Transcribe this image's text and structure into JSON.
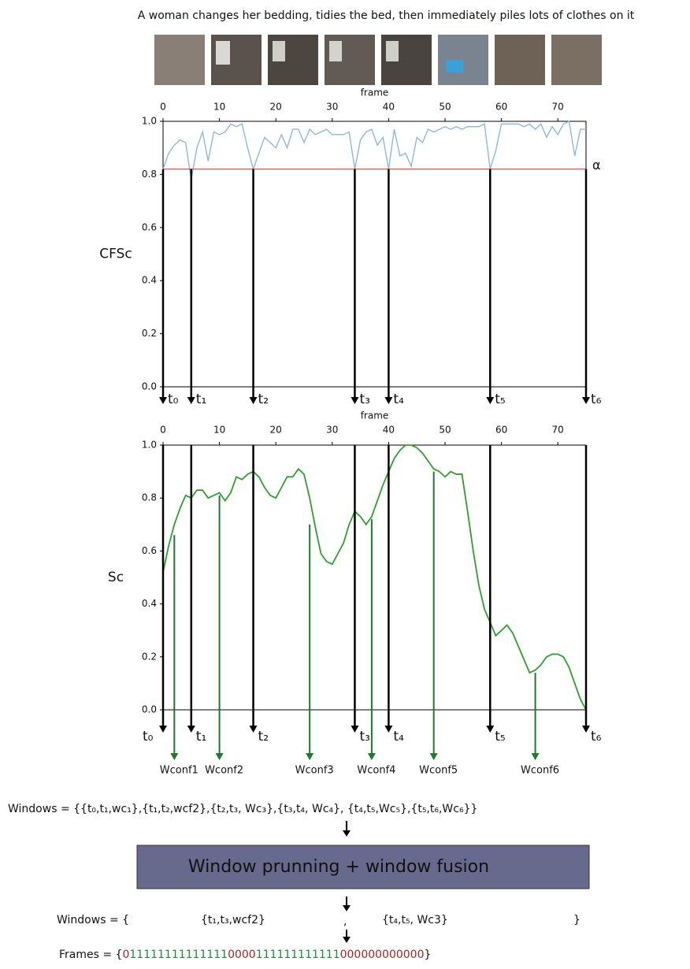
{
  "caption": "A woman changes her bedding, tidies the bed, then immediately piles lots of clothes on it",
  "chart_data": [
    {
      "type": "line",
      "x_label": "frame",
      "y_label": "CFSc",
      "y_label_color": "#2222cc",
      "color": "#8fb8d8",
      "xlim": [
        0,
        75
      ],
      "ylim": [
        0,
        1
      ],
      "xticks": [
        0,
        10,
        20,
        30,
        40,
        50,
        60,
        70
      ],
      "yticks": [
        {
          "value": 0,
          "label": "0.0"
        },
        0.2,
        0.4,
        0.6,
        0.8,
        {
          "value": 1,
          "label": "1.0"
        }
      ],
      "x": [
        0,
        1,
        2,
        3,
        4,
        5,
        6,
        7,
        8,
        9,
        10,
        11,
        12,
        13,
        14,
        15,
        16,
        17,
        18,
        19,
        20,
        21,
        22,
        23,
        24,
        25,
        26,
        27,
        28,
        29,
        30,
        31,
        32,
        33,
        34,
        35,
        36,
        37,
        38,
        39,
        40,
        41,
        42,
        43,
        44,
        45,
        46,
        47,
        48,
        49,
        50,
        51,
        52,
        53,
        54,
        55,
        56,
        57,
        58,
        59,
        60,
        61,
        62,
        63,
        64,
        65,
        66,
        67,
        68,
        69,
        70,
        71,
        72,
        73,
        74,
        75
      ],
      "values": [
        0.82,
        0.88,
        0.91,
        0.93,
        0.92,
        0.78,
        0.9,
        0.96,
        0.85,
        0.96,
        0.95,
        0.96,
        0.99,
        0.98,
        0.99,
        0.9,
        0.82,
        0.88,
        0.94,
        0.92,
        0.9,
        0.95,
        0.9,
        0.97,
        0.97,
        0.92,
        0.97,
        0.95,
        0.96,
        0.97,
        0.95,
        0.95,
        0.95,
        0.96,
        0.82,
        0.93,
        0.96,
        0.97,
        0.91,
        0.94,
        0.82,
        0.97,
        0.87,
        0.88,
        0.83,
        0.94,
        0.92,
        0.97,
        0.96,
        0.97,
        0.98,
        0.97,
        0.98,
        0.97,
        0.98,
        0.98,
        0.98,
        0.99,
        0.82,
        0.89,
        0.99,
        0.99,
        0.99,
        0.99,
        0.98,
        0.99,
        0.97,
        0.99,
        0.94,
        0.98,
        0.95,
        0.99,
        1.0,
        0.87,
        0.97,
        0.97
      ],
      "threshold": {
        "value": 0.82,
        "label": "α",
        "color": "#e03030"
      },
      "cuts": {
        "labels": [
          "t₀",
          "t₁",
          "t₂",
          "t₃",
          "t₄",
          "t₅",
          "t₆"
        ],
        "x": [
          0,
          5,
          16,
          34,
          40,
          58,
          75
        ]
      }
    },
    {
      "type": "line",
      "x_label": "frame",
      "y_label": "Sc",
      "y_label_color": "#1e7a2e",
      "color": "#2ca02c",
      "xlim": [
        0,
        75
      ],
      "ylim": [
        0,
        1
      ],
      "xticks": [
        0,
        10,
        20,
        30,
        40,
        50,
        60,
        70
      ],
      "yticks": [
        {
          "value": 0,
          "label": "0.0"
        },
        0.2,
        0.4,
        0.6,
        0.8,
        {
          "value": 1,
          "label": "1.0"
        }
      ],
      "x": [
        0,
        1,
        2,
        3,
        4,
        5,
        6,
        7,
        8,
        9,
        10,
        11,
        12,
        13,
        14,
        15,
        16,
        17,
        18,
        19,
        20,
        21,
        22,
        23,
        24,
        25,
        26,
        27,
        28,
        29,
        30,
        31,
        32,
        33,
        34,
        35,
        36,
        37,
        38,
        39,
        40,
        41,
        42,
        43,
        44,
        45,
        46,
        47,
        48,
        49,
        50,
        51,
        52,
        53,
        54,
        55,
        56,
        57,
        58,
        59,
        60,
        61,
        62,
        63,
        64,
        65,
        66,
        67,
        68,
        69,
        70,
        71,
        72,
        73,
        74,
        75
      ],
      "values": [
        0.52,
        0.62,
        0.7,
        0.76,
        0.81,
        0.8,
        0.83,
        0.83,
        0.8,
        0.81,
        0.82,
        0.79,
        0.82,
        0.88,
        0.87,
        0.89,
        0.9,
        0.88,
        0.84,
        0.81,
        0.8,
        0.84,
        0.88,
        0.88,
        0.91,
        0.89,
        0.8,
        0.69,
        0.59,
        0.56,
        0.55,
        0.59,
        0.63,
        0.7,
        0.75,
        0.73,
        0.7,
        0.73,
        0.79,
        0.85,
        0.9,
        0.95,
        0.98,
        1.0,
        1.0,
        0.99,
        0.97,
        0.94,
        0.91,
        0.9,
        0.88,
        0.9,
        0.89,
        0.89,
        0.75,
        0.6,
        0.47,
        0.38,
        0.33,
        0.28,
        0.3,
        0.32,
        0.29,
        0.24,
        0.19,
        0.14,
        0.15,
        0.17,
        0.2,
        0.21,
        0.21,
        0.2,
        0.16,
        0.1,
        0.04,
        0.0
      ],
      "cuts": {
        "labels": [
          "t₀",
          "t₁",
          "t₂",
          "t₃",
          "t₄",
          "t₅",
          "t₆"
        ],
        "x": [
          0,
          5,
          16,
          34,
          40,
          58,
          75
        ]
      },
      "windows": {
        "labels": [
          "Wconf1",
          "Wconf2",
          "Wconf3",
          "Wconf4",
          "Wconf5",
          "Wconf6"
        ],
        "x": [
          2,
          10,
          26,
          37,
          48,
          66
        ],
        "values": [
          0.66,
          0.81,
          0.7,
          0.72,
          0.9,
          0.14
        ],
        "color": "#1e7a2e"
      }
    }
  ],
  "windows_line": "Windows =  {{t₀,t₁,wc₁},{t₁,t₂,wcf2},{t₂,t₃, Wc₃},{t₃,t₄, Wc₄}, {t₄,t₅,Wc₅},{t₅,t₆,Wc₆}}",
  "process_box": "Window prunning + window fusion",
  "result_windows": {
    "label": "Windows = {",
    "items": [
      "{t₁,t₃,wcf2}",
      ",",
      "{t₄,t₅, Wc3}"
    ],
    "close": "}"
  },
  "frames": {
    "label": "Frames = {",
    "segments": [
      {
        "text": "0",
        "color": "#a0262a"
      },
      {
        "text": "11111111111111",
        "color": "#1e8a3a"
      },
      {
        "text": "0000",
        "color": "#a0262a"
      },
      {
        "text": "111111111111",
        "color": "#1e8a3a"
      },
      {
        "text": "000000000000",
        "color": "#a0262a"
      }
    ],
    "close": "}"
  }
}
